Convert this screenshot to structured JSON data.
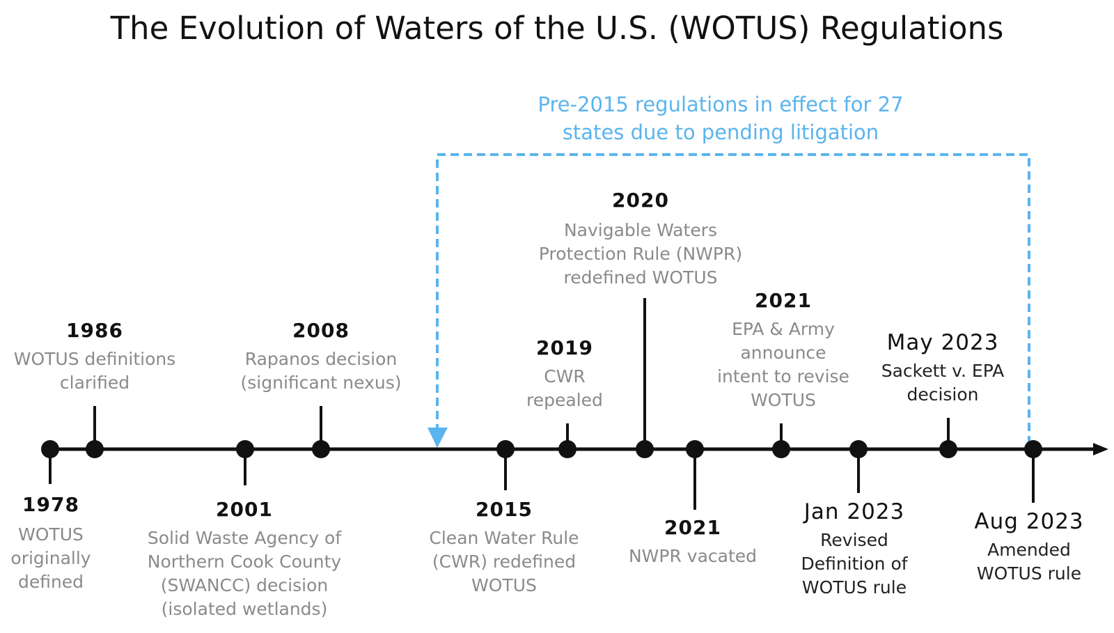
{
  "title": "The Evolution of Waters of the U.S. (WOTUS) Regulations",
  "range_note": {
    "line1": "Pre-2015 regulations in effect for 27",
    "line2": "states due to pending litigation"
  },
  "colors": {
    "axis": "#111111",
    "range": "#5ab4ee",
    "year": "#111111",
    "description": "#8a8a8a",
    "description_dark": "#222222"
  },
  "events": [
    {
      "year": "1978",
      "desc": [
        "WOTUS",
        "originally",
        "defined"
      ]
    },
    {
      "year": "1986",
      "desc": [
        "WOTUS definitions",
        "clarified"
      ]
    },
    {
      "year": "2001",
      "desc": [
        "Solid Waste Agency of",
        "Northern Cook County",
        "(SWANCC) decision",
        "(isolated wetlands)"
      ]
    },
    {
      "year": "2008",
      "desc": [
        "Rapanos decision",
        "(significant nexus)"
      ]
    },
    {
      "year": "2015",
      "desc": [
        "Clean Water Rule",
        "(CWR) redefined",
        "WOTUS"
      ]
    },
    {
      "year": "2019",
      "desc": [
        "CWR",
        "repealed"
      ]
    },
    {
      "year": "2020",
      "desc": [
        "Navigable Waters",
        "Protection Rule (NWPR)",
        "redefined WOTUS"
      ]
    },
    {
      "year": "2021",
      "desc": [
        "NWPR vacated"
      ]
    },
    {
      "year": "2021",
      "desc": [
        "EPA & Army",
        "announce",
        "intent to revise",
        "WOTUS"
      ]
    },
    {
      "year": "Jan 2023",
      "desc": [
        "Revised",
        "Definition of",
        "WOTUS rule"
      ]
    },
    {
      "year": "May 2023",
      "desc": [
        "Sackett v. EPA",
        "decision"
      ]
    },
    {
      "year": "Aug 2023",
      "desc": [
        "Amended",
        "WOTUS rule"
      ]
    }
  ]
}
